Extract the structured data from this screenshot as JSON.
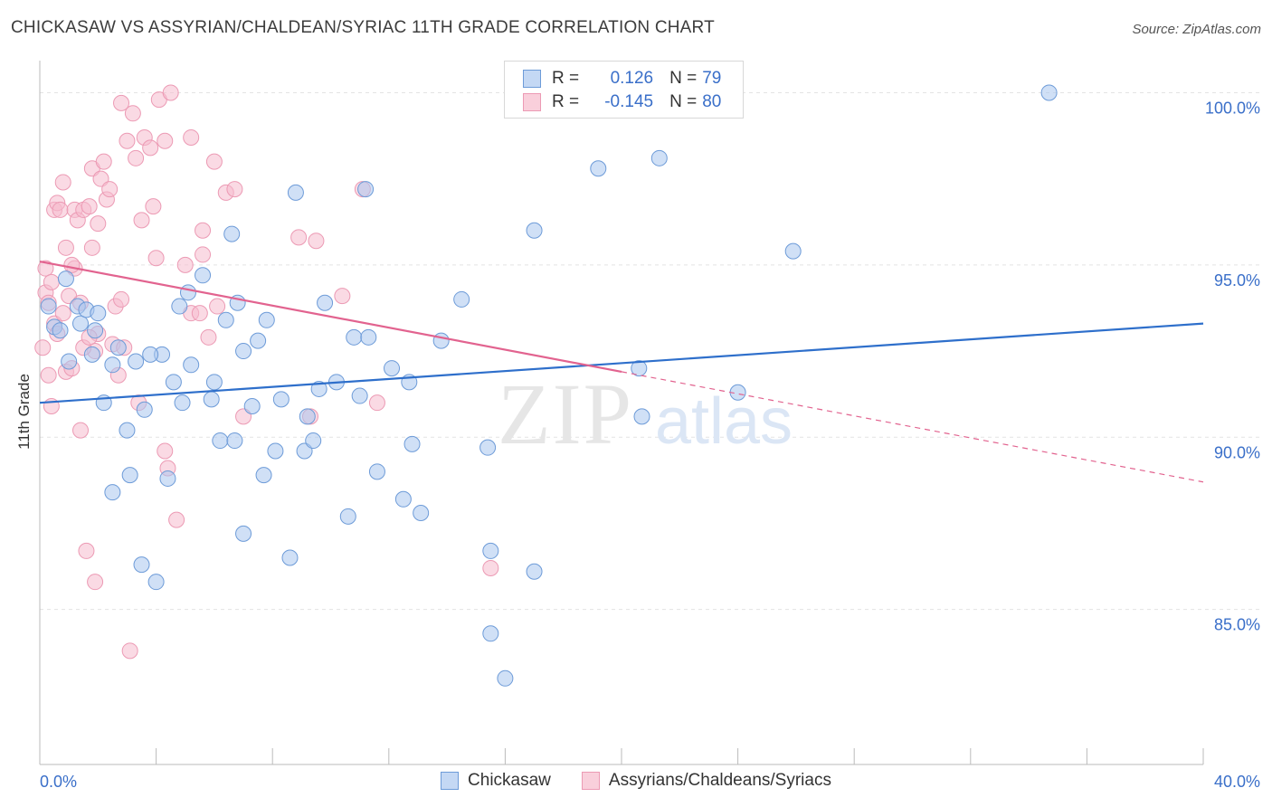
{
  "title": "CHICKASAW VS ASSYRIAN/CHALDEAN/SYRIAC 11TH GRADE CORRELATION CHART",
  "source": "Source: ZipAtlas.com",
  "legend": {
    "rows": [
      {
        "r_label": "R =",
        "r_value": "0.126",
        "n_label": "N =",
        "n_value": "79"
      },
      {
        "r_label": "R =",
        "r_value": "-0.145",
        "n_label": "N =",
        "n_value": "80"
      }
    ]
  },
  "bottom_legend": [
    "Chickasaw",
    "Assyrians/Chaldeans/Syriacs"
  ],
  "watermark": {
    "zip": "ZIP",
    "atlas": "atlas"
  },
  "colors": {
    "blue_fill": "#a9c6ee",
    "blue_stroke": "#6d9bd8",
    "blue_line": "#2e6fcb",
    "pink_fill": "#f6bccd",
    "pink_stroke": "#ec9ab4",
    "pink_line": "#e2638f",
    "tick_label": "#3a6fc9",
    "grid": "#e3e3e3"
  },
  "chart_data": {
    "type": "scatter",
    "title": "CHICKASAW VS ASSYRIAN/CHALDEAN/SYRIAC 11TH GRADE CORRELATION CHART",
    "xlabel": "",
    "ylabel": "11th Grade",
    "xlim": [
      0,
      40
    ],
    "ylim": [
      80.5,
      100.8
    ],
    "x_tick_labels": [
      "0.0%",
      "40.0%"
    ],
    "y_ticks": [
      85,
      90,
      95,
      100
    ],
    "y_tick_labels": [
      "85.0%",
      "90.0%",
      "95.0%",
      "100.0%"
    ],
    "grid": true,
    "legend_position": "top-center",
    "series": [
      {
        "name": "Chickasaw",
        "color": "#a9c6ee",
        "trend": {
          "x": [
            0,
            40
          ],
          "y": [
            91.0,
            93.3
          ],
          "style": "solid"
        },
        "points": [
          [
            0.3,
            93.8
          ],
          [
            0.5,
            93.2
          ],
          [
            0.7,
            93.1
          ],
          [
            0.9,
            94.6
          ],
          [
            1.0,
            92.2
          ],
          [
            1.3,
            93.8
          ],
          [
            1.4,
            93.3
          ],
          [
            1.6,
            93.7
          ],
          [
            1.8,
            92.4
          ],
          [
            1.9,
            93.1
          ],
          [
            2.2,
            91.0
          ],
          [
            2.5,
            88.4
          ],
          [
            2.5,
            92.1
          ],
          [
            2.7,
            92.6
          ],
          [
            3.0,
            90.2
          ],
          [
            3.1,
            88.9
          ],
          [
            3.3,
            92.2
          ],
          [
            3.5,
            86.3
          ],
          [
            3.6,
            90.8
          ],
          [
            4.0,
            85.8
          ],
          [
            4.2,
            92.4
          ],
          [
            4.4,
            88.8
          ],
          [
            4.6,
            91.6
          ],
          [
            4.8,
            93.8
          ],
          [
            4.9,
            91.0
          ],
          [
            5.1,
            94.2
          ],
          [
            5.2,
            92.1
          ],
          [
            5.6,
            94.7
          ],
          [
            5.9,
            91.1
          ],
          [
            6.0,
            91.6
          ],
          [
            6.2,
            89.9
          ],
          [
            6.4,
            93.4
          ],
          [
            6.6,
            95.9
          ],
          [
            6.7,
            89.9
          ],
          [
            7.0,
            87.2
          ],
          [
            7.0,
            92.5
          ],
          [
            7.3,
            90.9
          ],
          [
            7.5,
            92.8
          ],
          [
            7.7,
            88.9
          ],
          [
            7.8,
            93.4
          ],
          [
            8.1,
            89.6
          ],
          [
            8.3,
            91.1
          ],
          [
            8.6,
            86.5
          ],
          [
            8.8,
            97.1
          ],
          [
            9.1,
            89.6
          ],
          [
            9.2,
            90.6
          ],
          [
            9.4,
            89.9
          ],
          [
            9.6,
            91.4
          ],
          [
            9.8,
            93.9
          ],
          [
            10.2,
            91.6
          ],
          [
            10.6,
            87.7
          ],
          [
            10.8,
            92.9
          ],
          [
            11.0,
            91.2
          ],
          [
            11.2,
            97.2
          ],
          [
            11.3,
            92.9
          ],
          [
            11.6,
            89.0
          ],
          [
            12.1,
            92.0
          ],
          [
            12.5,
            88.2
          ],
          [
            12.7,
            91.6
          ],
          [
            12.8,
            89.8
          ],
          [
            13.1,
            87.8
          ],
          [
            13.8,
            92.8
          ],
          [
            14.5,
            94.0
          ],
          [
            15.5,
            86.7
          ],
          [
            15.5,
            84.3
          ],
          [
            16.0,
            83.0
          ],
          [
            17.0,
            96.0
          ],
          [
            17.0,
            86.1
          ],
          [
            19.2,
            97.8
          ],
          [
            20.6,
            92.0
          ],
          [
            20.7,
            90.6
          ],
          [
            21.3,
            98.1
          ],
          [
            24.0,
            91.3
          ],
          [
            25.9,
            95.4
          ],
          [
            34.7,
            100.0
          ],
          [
            15.4,
            89.7
          ],
          [
            3.8,
            92.4
          ],
          [
            2.0,
            93.6
          ],
          [
            6.8,
            93.9
          ]
        ]
      },
      {
        "name": "Assyrians/Chaldeans/Syriacs",
        "color": "#f6bccd",
        "trend": {
          "x": [
            0,
            20
          ],
          "y": [
            95.1,
            91.9
          ],
          "style": "solid",
          "dashed_extension": {
            "x": [
              20,
              40
            ],
            "y": [
              91.9,
              88.7
            ]
          }
        },
        "points": [
          [
            0.1,
            92.6
          ],
          [
            0.2,
            94.2
          ],
          [
            0.2,
            94.9
          ],
          [
            0.3,
            91.8
          ],
          [
            0.4,
            94.5
          ],
          [
            0.5,
            93.3
          ],
          [
            0.5,
            96.6
          ],
          [
            0.6,
            96.8
          ],
          [
            0.7,
            96.6
          ],
          [
            0.8,
            97.4
          ],
          [
            0.8,
            93.6
          ],
          [
            0.9,
            95.5
          ],
          [
            0.9,
            91.9
          ],
          [
            1.0,
            94.1
          ],
          [
            1.1,
            92.0
          ],
          [
            1.2,
            96.6
          ],
          [
            1.2,
            94.9
          ],
          [
            1.3,
            96.3
          ],
          [
            1.4,
            90.2
          ],
          [
            1.4,
            93.9
          ],
          [
            1.5,
            96.6
          ],
          [
            1.6,
            86.7
          ],
          [
            1.7,
            96.7
          ],
          [
            1.8,
            97.8
          ],
          [
            1.8,
            95.5
          ],
          [
            1.9,
            85.8
          ],
          [
            1.9,
            92.5
          ],
          [
            2.0,
            96.2
          ],
          [
            2.0,
            93.0
          ],
          [
            2.1,
            97.5
          ],
          [
            2.2,
            98.0
          ],
          [
            2.3,
            96.9
          ],
          [
            2.4,
            97.2
          ],
          [
            2.5,
            92.7
          ],
          [
            2.6,
            93.8
          ],
          [
            2.8,
            94.0
          ],
          [
            2.8,
            99.7
          ],
          [
            2.9,
            92.6
          ],
          [
            3.0,
            98.6
          ],
          [
            3.1,
            83.8
          ],
          [
            3.2,
            99.4
          ],
          [
            3.3,
            98.1
          ],
          [
            3.4,
            91.0
          ],
          [
            3.5,
            96.3
          ],
          [
            3.6,
            98.7
          ],
          [
            3.8,
            98.4
          ],
          [
            3.9,
            96.7
          ],
          [
            4.0,
            95.2
          ],
          [
            4.1,
            99.8
          ],
          [
            4.3,
            89.6
          ],
          [
            4.3,
            98.6
          ],
          [
            4.4,
            89.1
          ],
          [
            4.5,
            100.0
          ],
          [
            4.7,
            87.6
          ],
          [
            5.0,
            95.0
          ],
          [
            5.2,
            98.7
          ],
          [
            5.2,
            93.6
          ],
          [
            5.5,
            93.6
          ],
          [
            5.6,
            96.0
          ],
          [
            5.6,
            95.3
          ],
          [
            5.8,
            92.9
          ],
          [
            6.0,
            98.0
          ],
          [
            6.1,
            93.8
          ],
          [
            6.4,
            97.1
          ],
          [
            6.7,
            97.2
          ],
          [
            7.0,
            90.6
          ],
          [
            8.9,
            95.8
          ],
          [
            9.3,
            90.6
          ],
          [
            9.5,
            95.7
          ],
          [
            10.4,
            94.1
          ],
          [
            11.1,
            97.2
          ],
          [
            11.6,
            91.0
          ],
          [
            15.5,
            86.2
          ],
          [
            1.1,
            95.0
          ],
          [
            0.3,
            93.9
          ],
          [
            1.5,
            92.6
          ],
          [
            2.7,
            91.8
          ],
          [
            0.4,
            90.9
          ],
          [
            1.7,
            92.9
          ],
          [
            0.6,
            93.0
          ]
        ]
      }
    ]
  }
}
